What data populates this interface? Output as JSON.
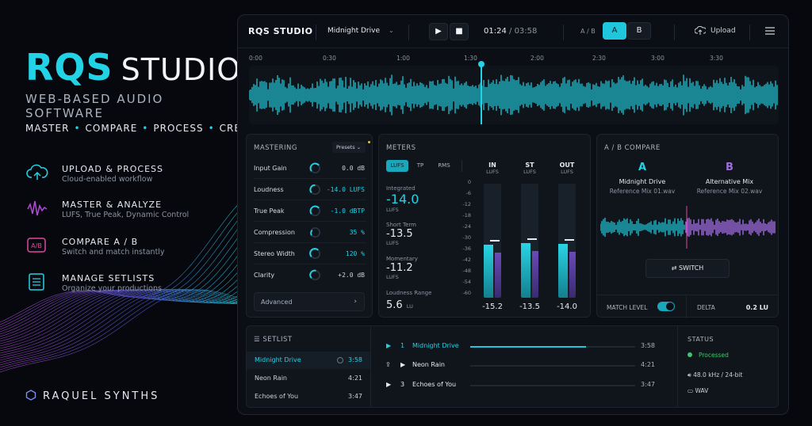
{
  "brand": {
    "name_part1": "RQS",
    "name_part2": "STUDIO",
    "tagline": "WEB-BASED AUDIO SOFTWARE",
    "actions": [
      "MASTER",
      "COMPARE",
      "PROCESS",
      "CREATE"
    ],
    "company": "RAQUEL SYNTHS",
    "accent": "#22d3e6",
    "secondary": "#a06be0"
  },
  "features": [
    {
      "icon": "upload-cloud-icon",
      "title": "UPLOAD & PROCESS",
      "desc": "Cloud-enabled workflow"
    },
    {
      "icon": "waveform-icon",
      "title": "MASTER & ANALYZE",
      "desc": "LUFS, True Peak, Dynamic Control"
    },
    {
      "icon": "ab-icon",
      "title": "COMPARE A / B",
      "desc": "Switch and match instantly"
    },
    {
      "icon": "list-icon",
      "title": "MANAGE SETLISTS",
      "desc": "Organize your productions"
    }
  ],
  "app": {
    "title": "RQS STUDIO",
    "track": "Midnight Drive",
    "current_time": "01:24",
    "total_time": "03:58",
    "ab_label": "A / B",
    "ab_a": "A",
    "ab_b": "B",
    "upload": "Upload",
    "ruler": [
      "0:00",
      "0:30",
      "1:00",
      "1:30",
      "2:00",
      "2:30",
      "3:00",
      "3:30"
    ],
    "play_progress": 0.36
  },
  "mastering": {
    "title": "MASTERING",
    "presets": "Presets",
    "rows": [
      {
        "label": "Input Gain",
        "value": "0.0 dB"
      },
      {
        "label": "Loudness",
        "value": "-14.0 LUFS"
      },
      {
        "label": "True Peak",
        "value": "-1.0 dBTP"
      },
      {
        "label": "Compression",
        "value": "35 %"
      },
      {
        "label": "Stereo Width",
        "value": "120 %"
      },
      {
        "label": "Clarity",
        "value": "+2.0 dB"
      }
    ],
    "advanced": "Advanced"
  },
  "meters": {
    "title": "METERS",
    "tabs": [
      "LUFS",
      "TP",
      "RMS"
    ],
    "stats": [
      {
        "label": "Integrated",
        "value": "-14.0",
        "unit": "LUFS"
      },
      {
        "label": "Short Term",
        "value": "-13.5",
        "unit": "LUFS"
      },
      {
        "label": "Momentary",
        "value": "-11.2",
        "unit": "LUFS"
      },
      {
        "label": "Loudness Range",
        "value": "5.6",
        "unit": "LU"
      }
    ],
    "scale": [
      "0",
      "-6",
      "-12",
      "-18",
      "-24",
      "-30",
      "-36",
      "-42",
      "-48",
      "-54",
      "-60"
    ],
    "channels": [
      {
        "name": "IN",
        "unit": "LUFS",
        "value": "-15.2",
        "level": -15.2
      },
      {
        "name": "ST",
        "unit": "LUFS",
        "value": "-13.5",
        "level": -13.5
      },
      {
        "name": "OUT",
        "unit": "LUFS",
        "value": "-14.0",
        "level": -14.0
      }
    ]
  },
  "abcompare": {
    "title": "A / B COMPARE",
    "a": {
      "letter": "A",
      "name": "Midnight Drive",
      "file": "Reference Mix 01.wav"
    },
    "b": {
      "letter": "B",
      "name": "Alternative Mix",
      "file": "Reference Mix 02.wav"
    },
    "switch": "SWITCH",
    "match_level": "MATCH LEVEL",
    "delta_label": "DELTA",
    "delta_value": "0.2 LU"
  },
  "setlist": {
    "title": "SETLIST",
    "items": [
      {
        "name": "Midnight Drive",
        "duration": "3:58"
      },
      {
        "name": "Neon Rain",
        "duration": "4:21"
      },
      {
        "name": "Echoes of You",
        "duration": "3:47"
      }
    ],
    "tracks": [
      {
        "num": "1",
        "name": "Midnight Drive",
        "duration": "3:58",
        "progress": 0.7
      },
      {
        "num": "",
        "name": "Neon Rain",
        "duration": "4:21",
        "progress": 0
      },
      {
        "num": "3",
        "name": "Echoes of You",
        "duration": "3:47",
        "progress": 0
      }
    ]
  },
  "status": {
    "title": "STATUS",
    "state": "Processed",
    "format": "48.0 kHz / 24-bit",
    "filetype": "WAV"
  }
}
